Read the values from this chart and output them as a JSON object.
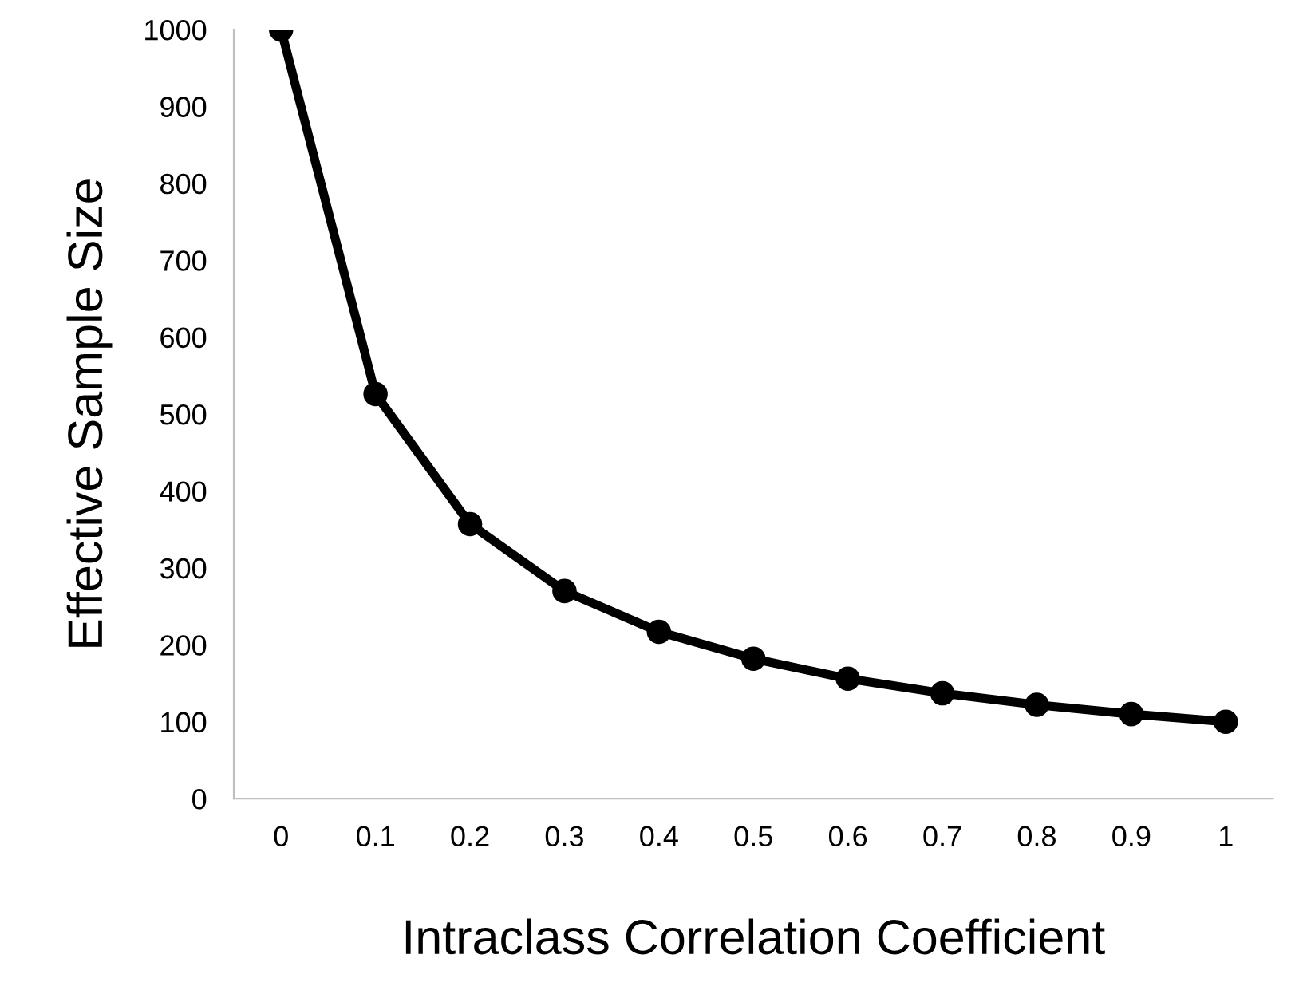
{
  "chart_data": {
    "type": "line",
    "xlabel": "Intraclass Correlation Coefficient",
    "ylabel": "Effective Sample Size",
    "categories": [
      "0",
      "0.1",
      "0.2",
      "0.3",
      "0.4",
      "0.5",
      "0.6",
      "0.7",
      "0.8",
      "0.9",
      "1"
    ],
    "series": [
      {
        "color": "#000000",
        "values": [
          1000,
          526,
          357,
          270,
          217,
          182,
          156,
          137,
          122,
          110,
          100
        ]
      }
    ],
    "ylim": [
      0,
      1000
    ],
    "yticks": [
      0,
      100,
      200,
      300,
      400,
      500,
      600,
      700,
      800,
      900,
      1000
    ],
    "grid": false,
    "legend": false,
    "marker": "circle",
    "line_style": "solid"
  }
}
